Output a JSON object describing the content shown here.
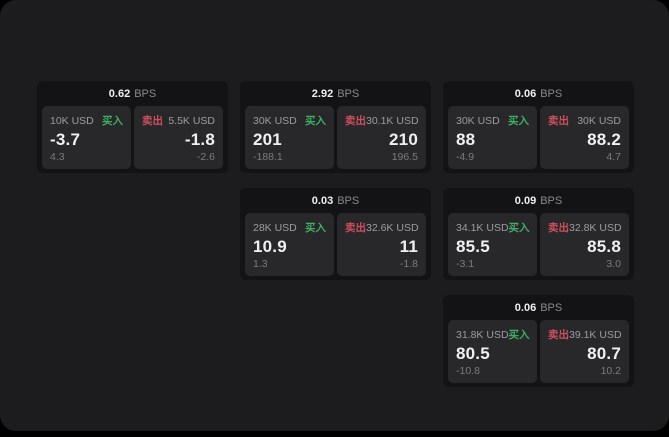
{
  "labels": {
    "bps_unit": "BPS",
    "buy": "买入",
    "sell": "卖出"
  },
  "colors": {
    "background": "#000000",
    "window": "#1c1c1e",
    "card": "#131315",
    "panel": "#28282b",
    "buy_accent": "#3fae63",
    "sell_accent": "#cd4f5c"
  },
  "cards": [
    {
      "col": 1,
      "row": 1,
      "bps": "0.62",
      "buy": {
        "amount": "10K USD",
        "price": "-3.7",
        "delta": "4.3"
      },
      "sell": {
        "amount": "5.5K USD",
        "price": "-1.8",
        "delta": "-2.6"
      }
    },
    {
      "col": 2,
      "row": 1,
      "bps": "2.92",
      "buy": {
        "amount": "30K USD",
        "price": "201",
        "delta": "-188.1"
      },
      "sell": {
        "amount": "30.1K USD",
        "price": "210",
        "delta": "196.5"
      }
    },
    {
      "col": 3,
      "row": 1,
      "bps": "0.06",
      "buy": {
        "amount": "30K USD",
        "price": "88",
        "delta": "-4.9"
      },
      "sell": {
        "amount": "30K USD",
        "price": "88.2",
        "delta": "4.7"
      }
    },
    {
      "col": 2,
      "row": 2,
      "bps": "0.03",
      "buy": {
        "amount": "28K USD",
        "price": "10.9",
        "delta": "1.3"
      },
      "sell": {
        "amount": "32.6K USD",
        "price": "11",
        "delta": "-1.8"
      }
    },
    {
      "col": 3,
      "row": 2,
      "bps": "0.09",
      "buy": {
        "amount": "34.1K USD",
        "price": "85.5",
        "delta": "-3.1"
      },
      "sell": {
        "amount": "32.8K USD",
        "price": "85.8",
        "delta": "3.0"
      }
    },
    {
      "col": 3,
      "row": 3,
      "bps": "0.06",
      "buy": {
        "amount": "31.8K USD",
        "price": "80.5",
        "delta": "-10.8"
      },
      "sell": {
        "amount": "39.1K USD",
        "price": "80.7",
        "delta": "10.2"
      }
    }
  ]
}
